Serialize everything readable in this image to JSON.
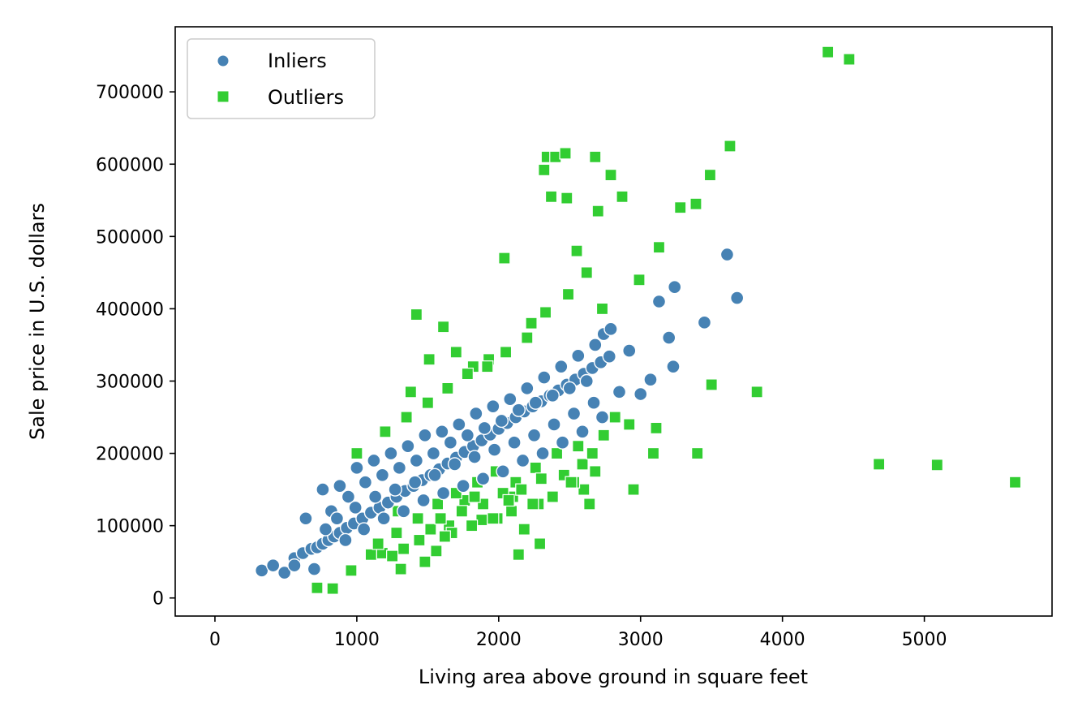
{
  "chart_data": {
    "type": "scatter",
    "title": "",
    "xlabel": "Living area above ground in square feet",
    "ylabel": "Sale price in U.S. dollars",
    "xlim": [
      -280,
      5900
    ],
    "ylim": [
      -25000,
      790000
    ],
    "x_ticks": [
      0,
      1000,
      2000,
      3000,
      4000,
      5000
    ],
    "y_ticks": [
      0,
      100000,
      200000,
      300000,
      400000,
      500000,
      600000,
      700000
    ],
    "x_tick_labels": [
      "0",
      "1000",
      "2000",
      "3000",
      "4000",
      "5000"
    ],
    "y_tick_labels": [
      "0",
      "100000",
      "200000",
      "300000",
      "400000",
      "500000",
      "600000",
      "700000"
    ],
    "grid": false,
    "legend": {
      "position": "top-left",
      "entries": [
        "Inliers",
        "Outliers"
      ]
    },
    "series": [
      {
        "name": "Inliers",
        "marker": "circle",
        "color": "#4682b4",
        "x": [
          330,
          410,
          490,
          560,
          620,
          680,
          720,
          760,
          800,
          840,
          880,
          930,
          980,
          1040,
          1100,
          1160,
          1220,
          1280,
          1340,
          1400,
          1460,
          1520,
          1580,
          1640,
          1700,
          1760,
          1820,
          1880,
          1940,
          2000,
          2060,
          2120,
          2180,
          2240,
          2300,
          2360,
          2420,
          2480,
          2540,
          2600,
          2660,
          2720,
          2780,
          2850,
          2920,
          3000,
          3070,
          3130,
          3200,
          3230,
          3240,
          3450,
          3610,
          3680,
          560,
          640,
          700,
          760,
          820,
          880,
          940,
          1000,
          1060,
          1120,
          1180,
          1240,
          1300,
          1360,
          1420,
          1480,
          1540,
          1600,
          1660,
          1720,
          1780,
          1840,
          1900,
          1960,
          2020,
          2080,
          2140,
          2200,
          2260,
          2320,
          2380,
          2440,
          2500,
          2560,
          2620,
          2680,
          2740,
          780,
          860,
          920,
          990,
          1050,
          1130,
          1190,
          1270,
          1330,
          1410,
          1470,
          1550,
          1610,
          1690,
          1750,
          1830,
          1890,
          1970,
          2030,
          2110,
          2170,
          2250,
          2310,
          2390,
          2450,
          2530,
          2590,
          2670,
          2730,
          2790
        ],
        "y": [
          38000,
          45000,
          35000,
          55000,
          62000,
          68000,
          70000,
          75000,
          80000,
          85000,
          90000,
          97000,
          103000,
          110000,
          118000,
          125000,
          132000,
          140000,
          148000,
          155000,
          163000,
          170000,
          178000,
          186000,
          194000,
          202000,
          210000,
          218000,
          226000,
          234000,
          242000,
          250000,
          258000,
          265000,
          272000,
          280000,
          287000,
          295000,
          302000,
          310000,
          318000,
          326000,
          334000,
          285000,
          342000,
          282000,
          302000,
          410000,
          360000,
          320000,
          430000,
          381000,
          475000,
          415000,
          45000,
          110000,
          40000,
          150000,
          120000,
          155000,
          140000,
          180000,
          160000,
          190000,
          170000,
          200000,
          180000,
          210000,
          190000,
          225000,
          200000,
          230000,
          215000,
          240000,
          225000,
          255000,
          235000,
          265000,
          245000,
          275000,
          260000,
          290000,
          270000,
          305000,
          280000,
          320000,
          290000,
          335000,
          300000,
          350000,
          365000,
          95000,
          110000,
          80000,
          125000,
          95000,
          140000,
          110000,
          150000,
          120000,
          160000,
          135000,
          170000,
          145000,
          185000,
          155000,
          195000,
          165000,
          205000,
          175000,
          215000,
          190000,
          225000,
          200000,
          240000,
          215000,
          255000,
          230000,
          270000,
          250000,
          372000
        ]
      },
      {
        "name": "Outliers",
        "marker": "square",
        "color": "#32cd32",
        "x": [
          720,
          830,
          960,
          1000,
          1100,
          1180,
          1250,
          1310,
          1380,
          1420,
          1480,
          1510,
          1560,
          1610,
          1650,
          1700,
          1760,
          1820,
          1880,
          1930,
          1990,
          2040,
          2100,
          2140,
          2180,
          2230,
          2280,
          2320,
          2340,
          2370,
          2400,
          2470,
          2480,
          2550,
          2600,
          2640,
          2680,
          2700,
          2730,
          2790,
          2820,
          2870,
          2920,
          2950,
          2990,
          3090,
          3110,
          3130,
          3280,
          3390,
          3400,
          3490,
          3500,
          3630,
          3820,
          4320,
          4470,
          4680,
          5090,
          5640,
          1200,
          1280,
          1350,
          1430,
          1500,
          1570,
          1640,
          1700,
          1780,
          1850,
          1920,
          1980,
          2050,
          2120,
          2200,
          2260,
          2330,
          2410,
          2490,
          2560,
          2620,
          2680,
          1290,
          1440,
          1520,
          1590,
          1670,
          1740,
          1810,
          1890,
          1960,
          2030,
          2090,
          2160,
          2240,
          2300,
          2380,
          2460,
          2530,
          2590,
          2660,
          2740,
          1150,
          1330,
          1620,
          1830,
          2070,
          2290,
          2510
        ],
        "y": [
          14000,
          13000,
          38000,
          200000,
          60000,
          62000,
          58000,
          40000,
          285000,
          392000,
          50000,
          330000,
          65000,
          375000,
          100000,
          340000,
          135000,
          320000,
          108000,
          330000,
          110000,
          470000,
          140000,
          60000,
          95000,
          380000,
          130000,
          592000,
          610000,
          555000,
          610000,
          615000,
          553000,
          480000,
          150000,
          130000,
          610000,
          535000,
          400000,
          585000,
          250000,
          555000,
          240000,
          150000,
          440000,
          200000,
          235000,
          485000,
          540000,
          545000,
          200000,
          585000,
          295000,
          625000,
          285000,
          755000,
          745000,
          185000,
          184000,
          160000,
          230000,
          90000,
          250000,
          110000,
          270000,
          130000,
          290000,
          145000,
          310000,
          160000,
          320000,
          175000,
          340000,
          160000,
          360000,
          180000,
          395000,
          200000,
          420000,
          210000,
          450000,
          175000,
          120000,
          80000,
          95000,
          110000,
          90000,
          120000,
          100000,
          130000,
          110000,
          145000,
          120000,
          150000,
          130000,
          165000,
          140000,
          170000,
          160000,
          185000,
          200000,
          225000,
          75000,
          68000,
          85000,
          140000,
          135000,
          75000,
          160000
        ]
      }
    ]
  }
}
